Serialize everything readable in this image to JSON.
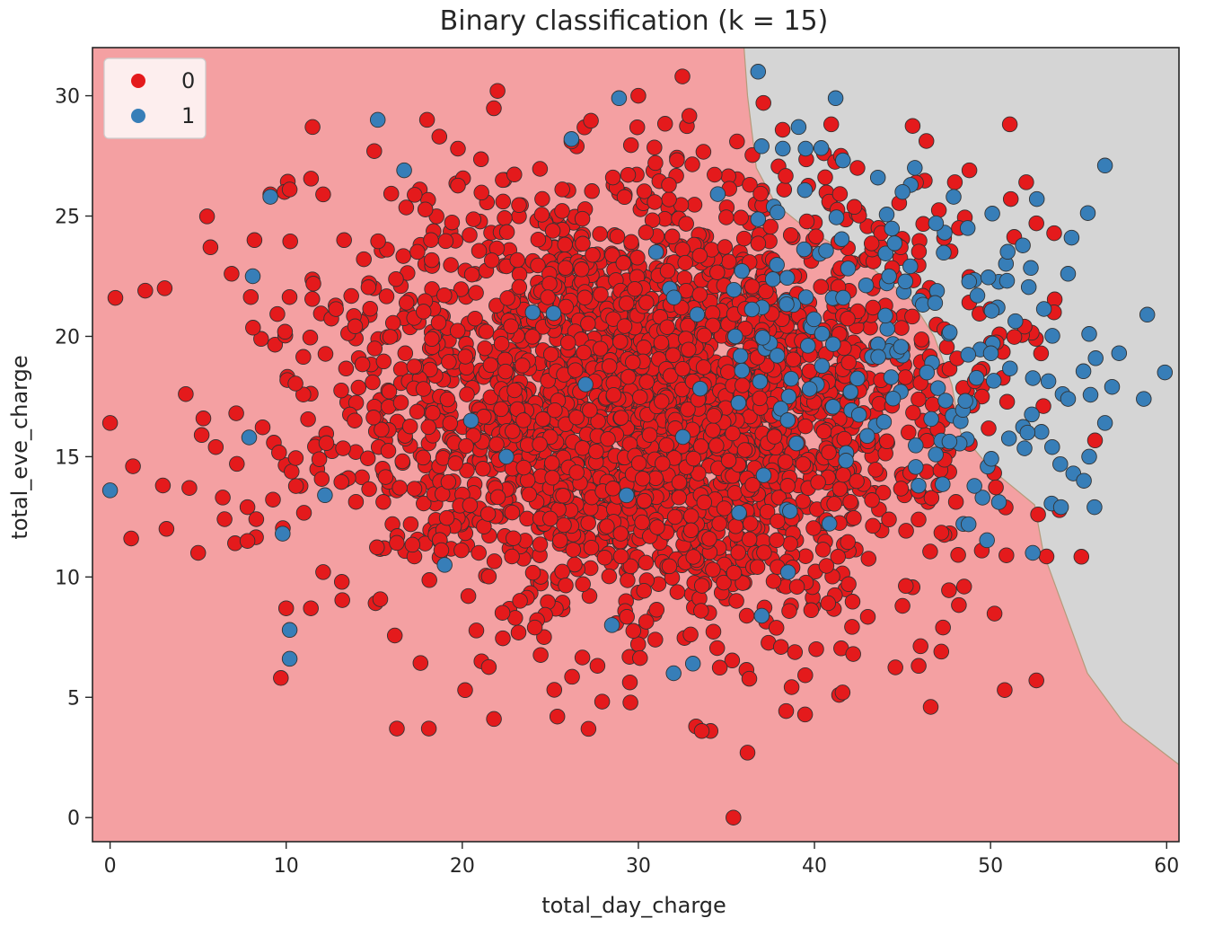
{
  "chart_data": {
    "type": "scatter",
    "title": "Binary classification (k = 15)",
    "xlabel": "total_day_charge",
    "ylabel": "total_eve_charge",
    "xlim": [
      -1,
      60.7
    ],
    "ylim": [
      -1,
      32
    ],
    "xticks": [
      0,
      10,
      20,
      30,
      40,
      50,
      60
    ],
    "yticks": [
      0,
      5,
      10,
      15,
      20,
      25,
      30
    ],
    "grid": false,
    "legend": {
      "position": "top-left",
      "title": ""
    },
    "background_regions": [
      {
        "class": "0",
        "color": "#f4a0a2"
      },
      {
        "class": "1",
        "color": "#d5d5d5"
      }
    ],
    "decision_boundary": [
      [
        36.0,
        32.0
      ],
      [
        36.2,
        30.0
      ],
      [
        36.7,
        27.0
      ],
      [
        37.8,
        25.5
      ],
      [
        39.5,
        24.5
      ],
      [
        43.0,
        23.0
      ],
      [
        45.5,
        21.5
      ],
      [
        46.8,
        20.0
      ],
      [
        47.8,
        18.0
      ],
      [
        48.3,
        16.0
      ],
      [
        50.0,
        14.5
      ],
      [
        52.5,
        13.0
      ],
      [
        53.0,
        11.0
      ],
      [
        54.0,
        9.0
      ],
      [
        55.5,
        6.0
      ],
      [
        57.5,
        4.0
      ],
      [
        60.7,
        2.2
      ]
    ],
    "series": [
      {
        "name": "0",
        "color": "#e41a1c",
        "edge_color": "#333333",
        "cluster": {
          "center": [
            30.6,
            17.3
          ],
          "sd": [
            8.2,
            4.3
          ],
          "count": 2850,
          "seed": 17
        },
        "points": [
          [
            35.4,
            0.0
          ],
          [
            36.2,
            2.7
          ],
          [
            34.1,
            3.6
          ],
          [
            33.6,
            3.6
          ],
          [
            18.1,
            3.7
          ],
          [
            21.8,
            4.1
          ],
          [
            25.4,
            4.2
          ],
          [
            46.6,
            4.6
          ],
          [
            41.4,
            5.1
          ],
          [
            41.6,
            5.2
          ],
          [
            50.8,
            5.3
          ],
          [
            52.6,
            5.7
          ],
          [
            9.7,
            5.8
          ],
          [
            0.0,
            16.4
          ],
          [
            0.3,
            21.6
          ],
          [
            1.3,
            14.6
          ],
          [
            1.2,
            11.6
          ],
          [
            2.0,
            21.9
          ],
          [
            3.0,
            13.8
          ],
          [
            3.1,
            22.0
          ],
          [
            3.2,
            12.0
          ],
          [
            4.3,
            17.6
          ],
          [
            4.5,
            13.7
          ],
          [
            5.0,
            11.0
          ],
          [
            5.2,
            15.9
          ],
          [
            5.7,
            23.7
          ],
          [
            6.0,
            15.4
          ],
          [
            6.4,
            13.3
          ],
          [
            6.5,
            12.4
          ],
          [
            6.9,
            22.6
          ],
          [
            7.2,
            14.7
          ],
          [
            7.1,
            11.4
          ],
          [
            7.8,
            11.5
          ],
          [
            7.8,
            12.9
          ],
          [
            8.2,
            24.0
          ],
          [
            8.3,
            12.4
          ],
          [
            9.1,
            25.9
          ],
          [
            9.9,
            26.0
          ],
          [
            10.2,
            26.1
          ],
          [
            11.5,
            28.7
          ],
          [
            12.1,
            25.9
          ],
          [
            11.4,
            8.7
          ],
          [
            10.0,
            8.7
          ],
          [
            15.0,
            27.7
          ],
          [
            18.0,
            29.0
          ],
          [
            18.7,
            28.3
          ],
          [
            22.0,
            30.2
          ],
          [
            26.2,
            28.1
          ],
          [
            30.0,
            30.0
          ],
          [
            32.5,
            30.8
          ],
          [
            35.6,
            28.1
          ],
          [
            37.1,
            29.7
          ],
          [
            41.5,
            27.5
          ],
          [
            48.8,
            26.9
          ],
          [
            52.6,
            24.7
          ],
          [
            53.6,
            21.0
          ],
          [
            53.0,
            17.1
          ],
          [
            52.7,
            12.6
          ],
          [
            50.9,
            10.9
          ],
          [
            49.5,
            11.1
          ],
          [
            48.5,
            9.6
          ],
          [
            47.3,
            7.9
          ],
          [
            47.2,
            6.9
          ],
          [
            45.0,
            8.8
          ],
          [
            42.2,
            6.8
          ],
          [
            40.1,
            7.0
          ],
          [
            44.9,
            23.7
          ],
          [
            48.2,
            24.5
          ]
        ]
      },
      {
        "name": "1",
        "color": "#377eb8",
        "edge_color": "#333333",
        "cluster": {
          "center": [
            44.0,
            19.0
          ],
          "sd": [
            6.0,
            3.5
          ],
          "count": 170,
          "seed": 91
        },
        "points": [
          [
            36.8,
            31.0
          ],
          [
            28.9,
            29.9
          ],
          [
            41.2,
            29.9
          ],
          [
            15.2,
            29.0
          ],
          [
            39.1,
            28.7
          ],
          [
            26.2,
            28.2
          ],
          [
            37.0,
            27.9
          ],
          [
            38.2,
            27.8
          ],
          [
            39.5,
            27.8
          ],
          [
            56.5,
            27.1
          ],
          [
            45.7,
            27.0
          ],
          [
            43.6,
            26.6
          ],
          [
            16.7,
            26.9
          ],
          [
            45.0,
            26.0
          ],
          [
            47.9,
            25.8
          ],
          [
            9.1,
            25.8
          ],
          [
            50.1,
            25.1
          ],
          [
            48.7,
            24.5
          ],
          [
            46.9,
            24.7
          ],
          [
            54.6,
            24.1
          ],
          [
            8.1,
            22.5
          ],
          [
            54.4,
            22.6
          ],
          [
            58.9,
            20.9
          ],
          [
            55.6,
            20.1
          ],
          [
            57.3,
            19.3
          ],
          [
            59.9,
            18.5
          ],
          [
            58.7,
            17.4
          ],
          [
            56.9,
            17.9
          ],
          [
            56.5,
            16.4
          ],
          [
            54.4,
            17.4
          ],
          [
            55.6,
            15.0
          ],
          [
            54.7,
            14.3
          ],
          [
            55.3,
            14.0
          ],
          [
            55.9,
            12.9
          ],
          [
            54.0,
            12.9
          ],
          [
            53.5,
            15.4
          ],
          [
            52.1,
            16.0
          ],
          [
            52.4,
            11.0
          ],
          [
            9.8,
            11.8
          ],
          [
            10.2,
            7.8
          ],
          [
            10.2,
            6.6
          ],
          [
            33.1,
            6.4
          ],
          [
            32.0,
            6.0
          ],
          [
            7.9,
            15.8
          ],
          [
            0.0,
            13.6
          ],
          [
            12.2,
            13.4
          ],
          [
            28.5,
            8.0
          ],
          [
            38.5,
            10.2
          ],
          [
            31.0,
            23.5
          ],
          [
            24.0,
            21.0
          ],
          [
            20.5,
            16.5
          ],
          [
            22.5,
            15.0
          ],
          [
            27.0,
            18.0
          ],
          [
            35.5,
            20.0
          ],
          [
            19.0,
            10.5
          ]
        ]
      }
    ]
  }
}
